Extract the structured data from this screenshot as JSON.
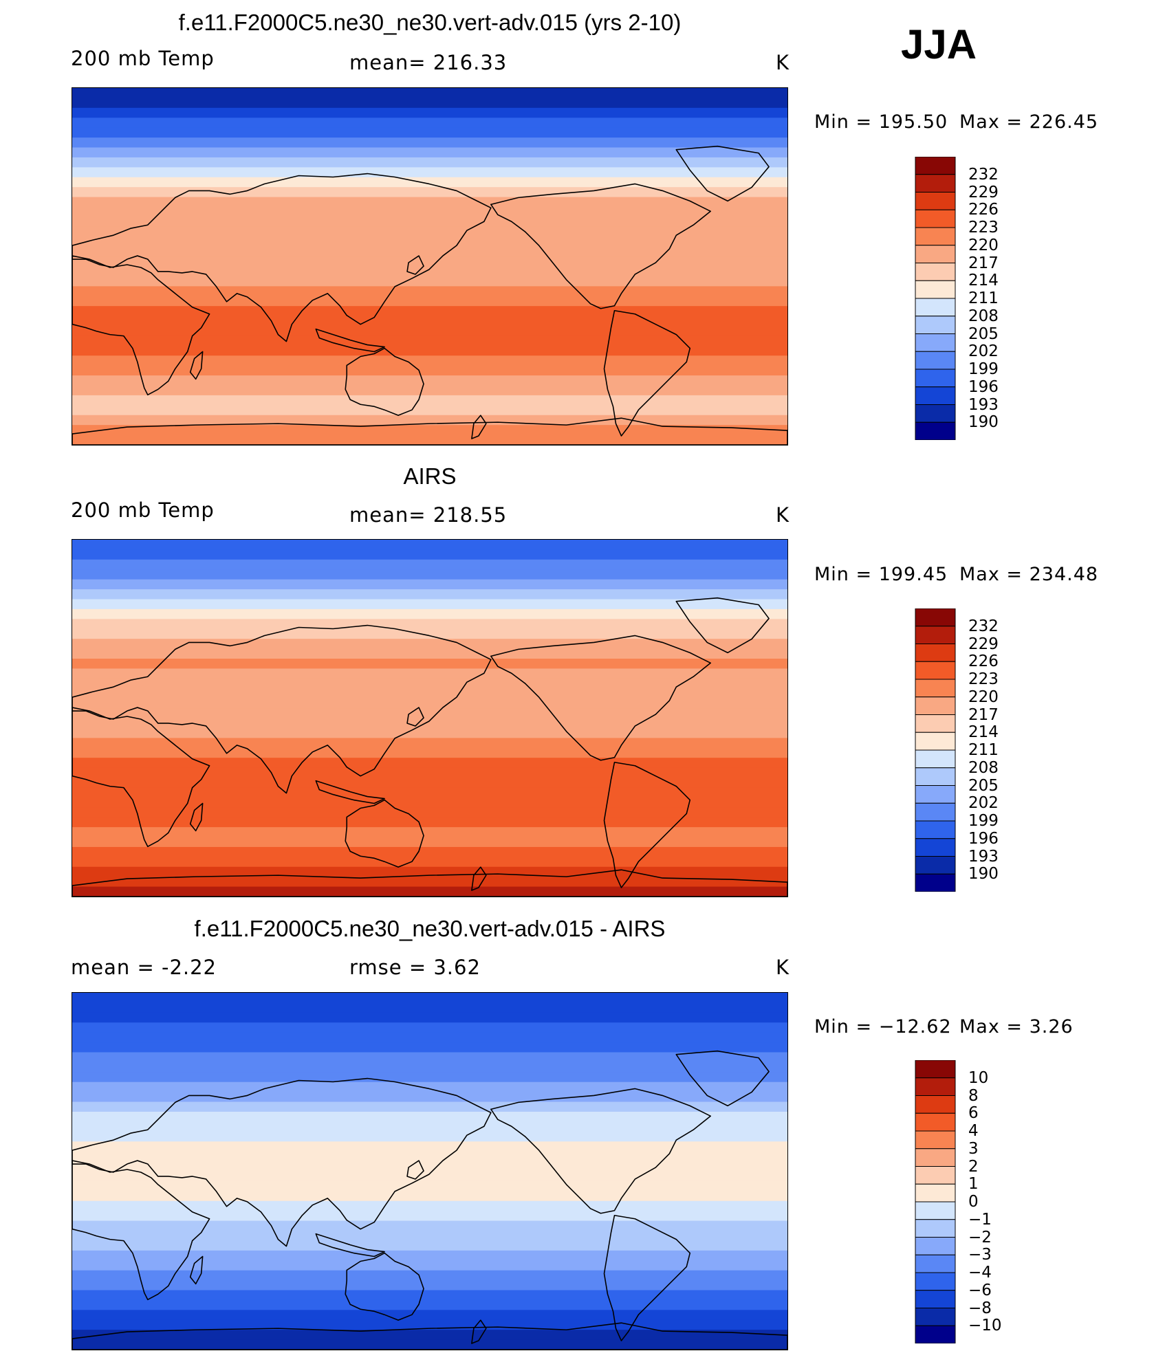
{
  "season": "JJA",
  "colors": {
    "abs_scale": [
      "#00008B",
      "#0A2BA8",
      "#1445D6",
      "#2F64EC",
      "#5A87F5",
      "#87A9FA",
      "#AEC9FB",
      "#D3E5FC",
      "#FDE9D6",
      "#FCCCB2",
      "#F9A883",
      "#F88452",
      "#F25B28",
      "#DD3B12",
      "#B31D0C",
      "#880705"
    ],
    "diff_scale": [
      "#00008B",
      "#0A2BA8",
      "#1445D6",
      "#2F64EC",
      "#5A87F5",
      "#87A9FA",
      "#AEC9FB",
      "#D3E5FC",
      "#FDE9D6",
      "#FCCCB2",
      "#F9A883",
      "#F88452",
      "#F25B28",
      "#DD3B12",
      "#B31D0C",
      "#880705"
    ],
    "land_outline": "#000000"
  },
  "panels": [
    {
      "id": "model",
      "title": "f.e11.F2000C5.ne30_ne30.vert-adv.015 (yrs 2-10)",
      "left_label": "200 mb Temp",
      "center_label": "mean=  216.33",
      "units": "K",
      "min_label": "Min  =  195.50",
      "max_label": "Max  =  226.45",
      "colorbar_labels": [
        "232",
        "229",
        "226",
        "223",
        "220",
        "217",
        "214",
        "211",
        "208",
        "205",
        "202",
        "199",
        "196",
        "193",
        "190"
      ],
      "bands": [
        1,
        1,
        2,
        3,
        3,
        4,
        5,
        6,
        7,
        8,
        9,
        10,
        10,
        10,
        10,
        10,
        10,
        10,
        10,
        10,
        11,
        11,
        12,
        12,
        12,
        12,
        12,
        11,
        11,
        10,
        10,
        9,
        9,
        10,
        11,
        11
      ]
    },
    {
      "id": "obs",
      "title": "AIRS",
      "left_label": "200 mb Temp",
      "center_label": "mean=  218.55",
      "units": "K",
      "min_label": "Min  =  199.45",
      "max_label": "Max  =  234.48",
      "colorbar_labels": [
        "232",
        "229",
        "226",
        "223",
        "220",
        "217",
        "214",
        "211",
        "208",
        "205",
        "202",
        "199",
        "196",
        "193",
        "190"
      ],
      "bands": [
        3,
        3,
        4,
        4,
        5,
        6,
        7,
        8,
        9,
        9,
        10,
        10,
        11,
        10,
        10,
        10,
        10,
        10,
        10,
        10,
        11,
        11,
        12,
        12,
        12,
        12,
        12,
        12,
        12,
        11,
        11,
        12,
        12,
        13,
        13,
        14
      ]
    },
    {
      "id": "diff",
      "title": "f.e11.F2000C5.ne30_ne30.vert-adv.015 - AIRS",
      "left_label": "mean  =    -2.22",
      "center_label": "rmse  =     3.62",
      "units": "K",
      "min_label": "Min  =  −12.62",
      "max_label": "Max  =     3.26",
      "colorbar_labels": [
        "10",
        "8",
        "6",
        "4",
        "3",
        "2",
        "1",
        "0",
        "−1",
        "−2",
        "−3",
        "−4",
        "−6",
        "−8",
        "−10"
      ],
      "bands": [
        2,
        2,
        2,
        3,
        3,
        3,
        4,
        4,
        4,
        5,
        5,
        6,
        7,
        7,
        7,
        8,
        8,
        8,
        8,
        8,
        8,
        7,
        7,
        6,
        6,
        6,
        5,
        5,
        4,
        4,
        3,
        3,
        2,
        2,
        1,
        1
      ]
    }
  ]
}
